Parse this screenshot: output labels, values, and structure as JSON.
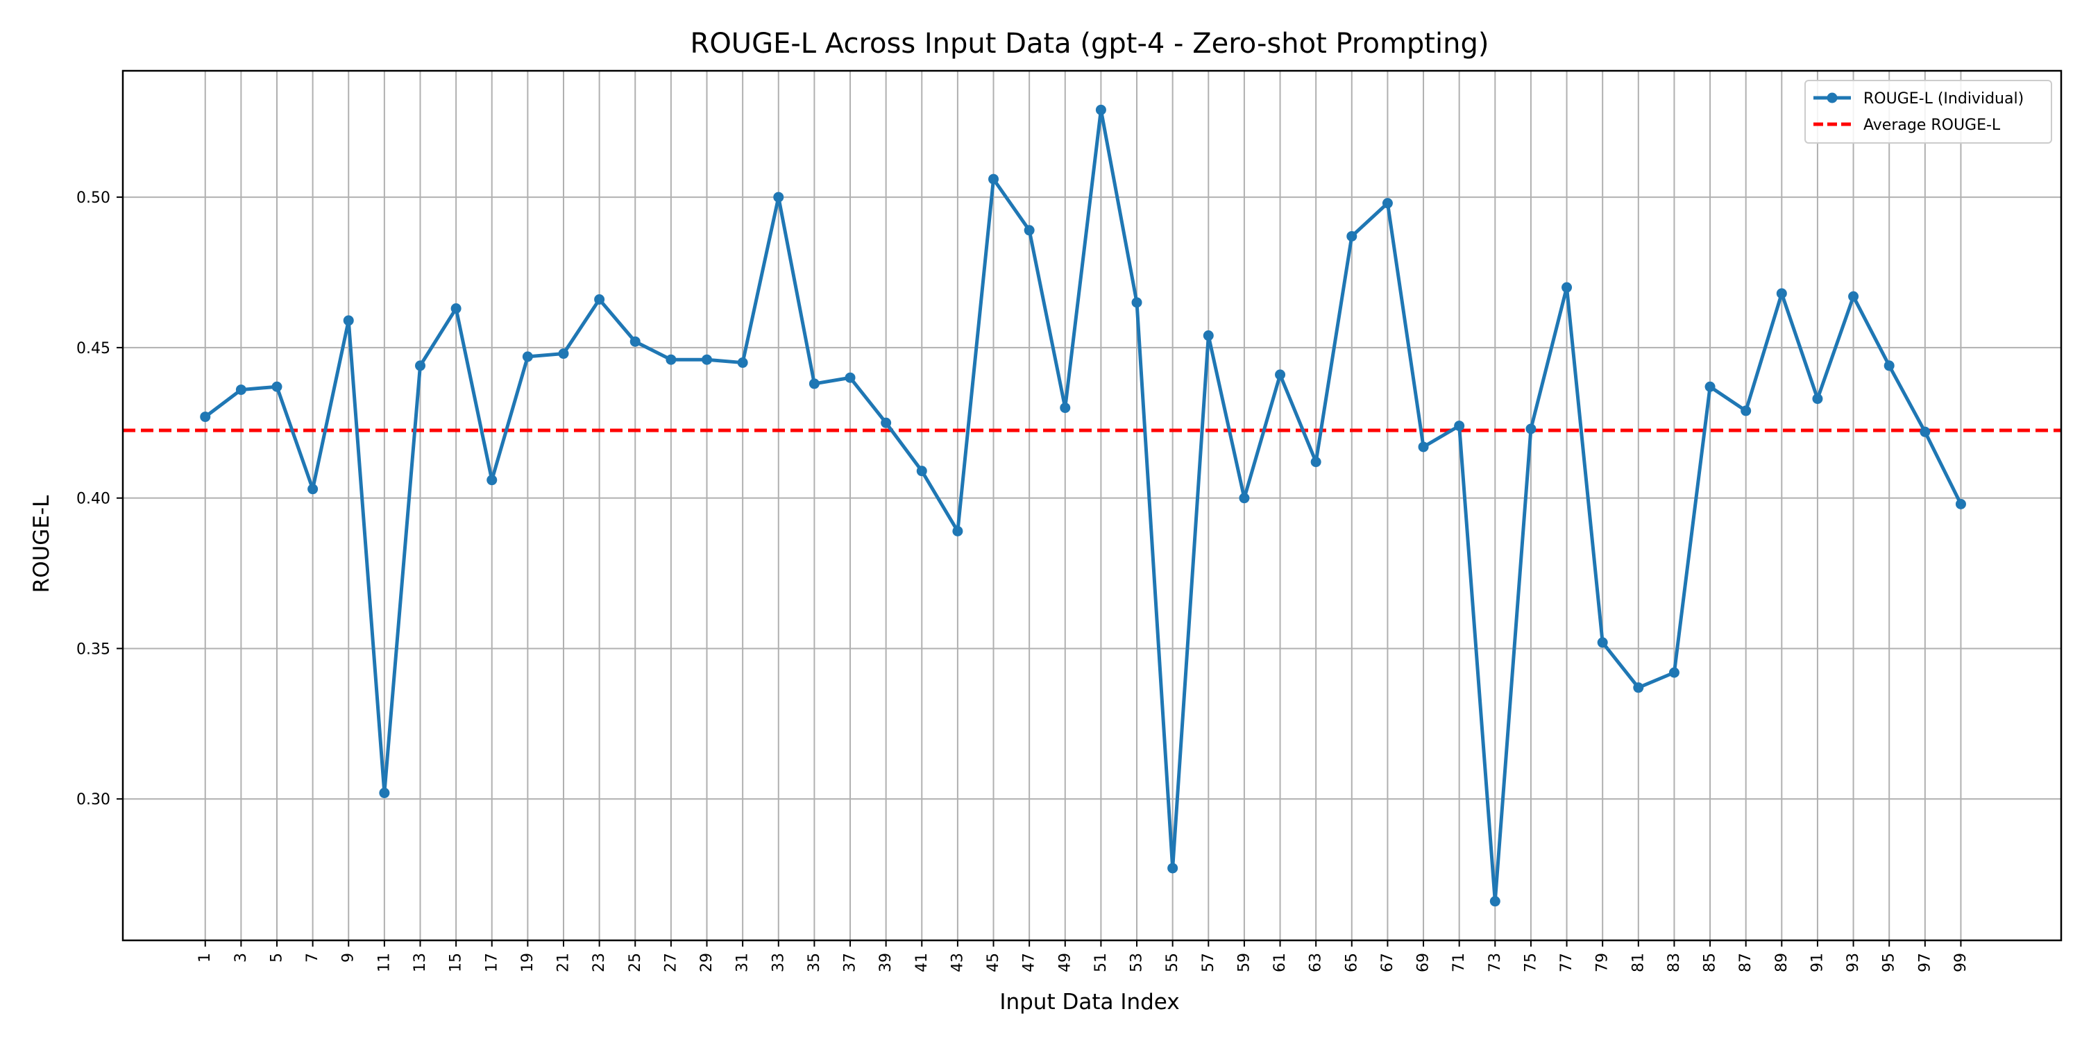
{
  "chart_data": {
    "type": "line",
    "title": "ROUGE-L Across Input Data (gpt-4 - Zero-shot Prompting)",
    "xlabel": "Input Data Index",
    "ylabel": "ROUGE-L",
    "x": [
      1,
      3,
      5,
      7,
      9,
      11,
      13,
      15,
      17,
      19,
      21,
      23,
      25,
      27,
      29,
      31,
      33,
      35,
      37,
      39,
      41,
      43,
      45,
      47,
      49,
      51,
      53,
      55,
      57,
      59,
      61,
      63,
      65,
      67,
      69,
      71,
      73,
      75,
      77,
      79,
      81,
      83,
      85,
      87,
      89,
      91,
      93,
      95,
      97,
      99
    ],
    "x_tick_labels": [
      "1",
      "3",
      "5",
      "7",
      "9",
      "11",
      "13",
      "15",
      "17",
      "19",
      "21",
      "23",
      "25",
      "27",
      "29",
      "31",
      "33",
      "35",
      "37",
      "39",
      "41",
      "43",
      "45",
      "47",
      "49",
      "51",
      "53",
      "55",
      "57",
      "59",
      "61",
      "63",
      "65",
      "67",
      "69",
      "71",
      "73",
      "75",
      "77",
      "79",
      "81",
      "83",
      "85",
      "87",
      "89",
      "91",
      "93",
      "95",
      "97",
      "99"
    ],
    "xlim": [
      -3.6,
      104.6
    ],
    "ylim": [
      0.253,
      0.542
    ],
    "y_ticks": [
      0.3,
      0.35,
      0.4,
      0.45,
      0.5
    ],
    "y_tick_labels": [
      "0.30",
      "0.35",
      "0.40",
      "0.45",
      "0.50"
    ],
    "grid": true,
    "legend_position": "top-right",
    "series": [
      {
        "name": "ROUGE-L (Individual)",
        "style": "solid line with circle markers",
        "color": "#1f77b4",
        "values": [
          0.427,
          0.436,
          0.437,
          0.403,
          0.459,
          0.302,
          0.444,
          0.463,
          0.406,
          0.447,
          0.448,
          0.466,
          0.452,
          0.446,
          0.446,
          0.445,
          0.5,
          0.438,
          0.44,
          0.425,
          0.409,
          0.389,
          0.506,
          0.489,
          0.43,
          0.529,
          0.465,
          0.277,
          0.454,
          0.4,
          0.441,
          0.412,
          0.487,
          0.498,
          0.417,
          0.424,
          0.266,
          0.423,
          0.47,
          0.352,
          0.337,
          0.342,
          0.437,
          0.429,
          0.468,
          0.433,
          0.467,
          0.444,
          0.422,
          0.398
        ]
      }
    ],
    "reference_lines": [
      {
        "name": "Average ROUGE-L",
        "orientation": "horizontal",
        "y": 0.4225,
        "style": "dashed",
        "color": "#ff0000"
      }
    ]
  }
}
